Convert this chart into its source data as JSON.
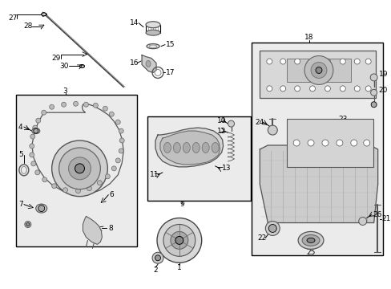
{
  "bg_color": "#ffffff",
  "line_color": "#000000",
  "box_fill": "#e8e8e8",
  "fig_width": 4.89,
  "fig_height": 3.6,
  "dpi": 100
}
